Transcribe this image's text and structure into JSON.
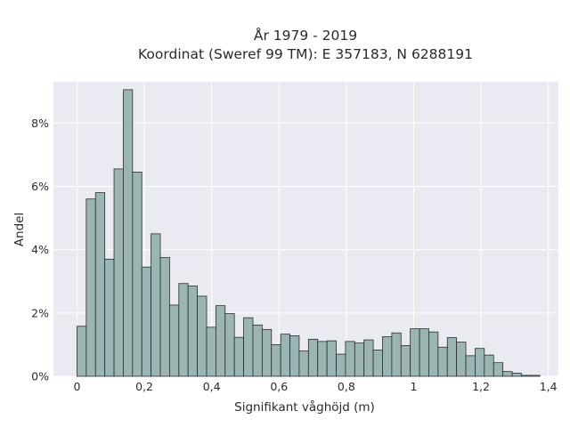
{
  "chart_data": {
    "type": "bar",
    "title_line1": "År 1979 - 2019",
    "title_line2": "Koordinat (Sweref 99 TM): E 357183, N 6288191",
    "xlabel": "Signifikant våghöjd (m)",
    "ylabel": "Andel",
    "xlim": [
      -0.07,
      1.43
    ],
    "ylim": [
      0,
      9.3
    ],
    "grid": true,
    "bar_color": "#9bb5b5",
    "edge_color": "#2b2b2b",
    "background_color": "#eaeaf2",
    "x_ticks": [
      {
        "value": 0,
        "label": "0"
      },
      {
        "value": 0.2,
        "label": "0,2"
      },
      {
        "value": 0.4,
        "label": "0,4"
      },
      {
        "value": 0.6,
        "label": "0,6"
      },
      {
        "value": 0.8,
        "label": "0,8"
      },
      {
        "value": 1.0,
        "label": "1"
      },
      {
        "value": 1.2,
        "label": "1,2"
      },
      {
        "value": 1.4,
        "label": "1,4"
      }
    ],
    "y_ticks": [
      {
        "value": 0,
        "label": "0%"
      },
      {
        "value": 2,
        "label": "2%"
      },
      {
        "value": 4,
        "label": "4%"
      },
      {
        "value": 6,
        "label": "6%"
      },
      {
        "value": 8,
        "label": "8%"
      }
    ],
    "bin_start": 0,
    "bin_width": 0.0275,
    "values": [
      1.58,
      5.6,
      5.8,
      3.7,
      6.55,
      9.05,
      6.45,
      3.45,
      4.5,
      3.75,
      2.25,
      2.93,
      2.85,
      2.53,
      1.55,
      2.23,
      1.98,
      1.23,
      1.85,
      1.62,
      1.48,
      1.0,
      1.33,
      1.28,
      0.8,
      1.17,
      1.1,
      1.12,
      0.7,
      1.1,
      1.05,
      1.15,
      0.83,
      1.25,
      1.37,
      0.97,
      1.5,
      1.5,
      1.4,
      0.92,
      1.22,
      1.08,
      0.65,
      0.88,
      0.67,
      0.43,
      0.15,
      0.1,
      0.03,
      0.03
    ]
  }
}
